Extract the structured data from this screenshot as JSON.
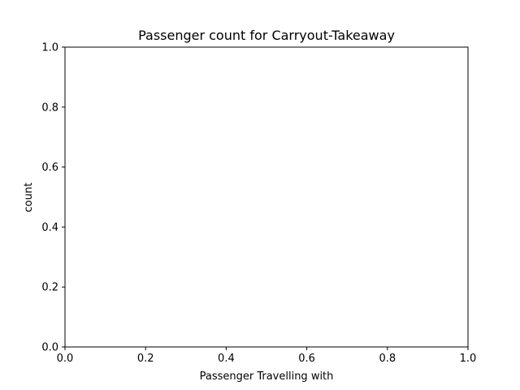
{
  "chart_data": {
    "type": "bar",
    "title": "Passenger count for Carryout-Takeaway",
    "xlabel": "Passenger Travelling with",
    "ylabel": "count",
    "xlim": [
      0.0,
      1.0
    ],
    "ylim": [
      0.0,
      1.0
    ],
    "xticks": [
      "0.0",
      "0.2",
      "0.4",
      "0.6",
      "0.8",
      "1.0"
    ],
    "yticks": [
      "0.0",
      "0.2",
      "0.4",
      "0.6",
      "0.8",
      "1.0"
    ],
    "categories": [],
    "values": [],
    "grid": false,
    "legend": "none"
  }
}
